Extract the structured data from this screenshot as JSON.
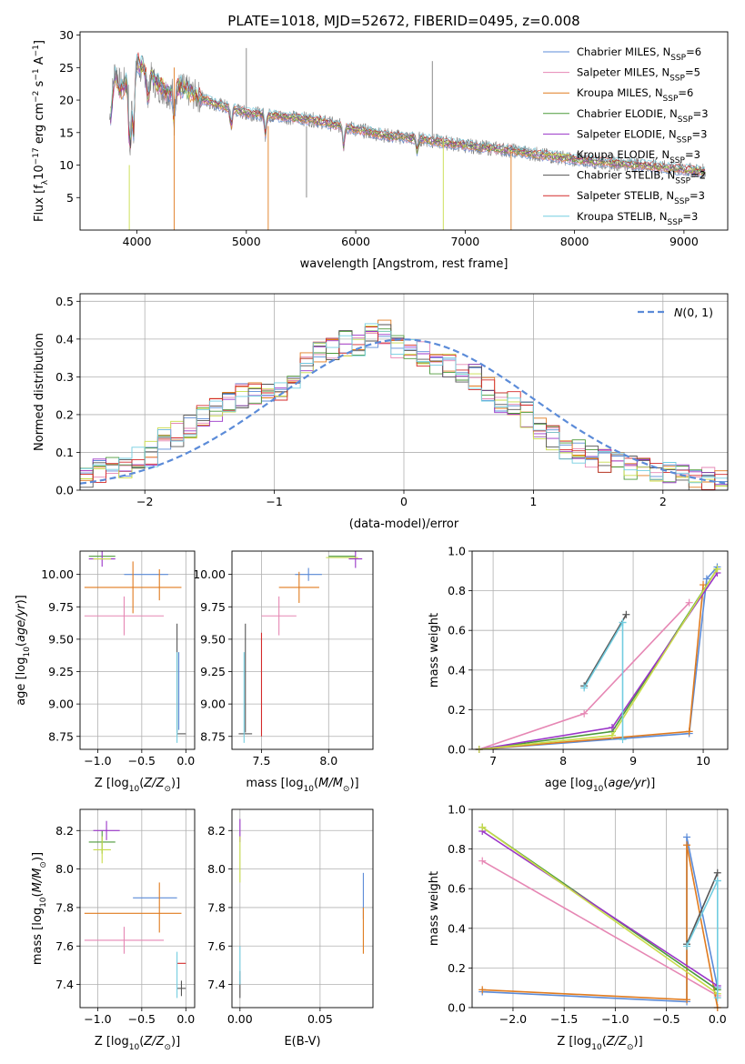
{
  "figure_title": "PLATE=1018, MJD=52672, FIBERID=0495, z=0.008",
  "colors": [
    "#5b8bd8",
    "#e687b4",
    "#e07b1f",
    "#4c9a3a",
    "#9a35c8",
    "#c8dc4a",
    "#555555",
    "#d42a2a",
    "#72cde0"
  ],
  "chart_data": [
    {
      "id": "spectrum",
      "type": "line",
      "title": "PLATE=1018, MJD=52672, FIBERID=0495, z=0.008",
      "xlabel": "wavelength [Angstrom, rest frame]",
      "ylabel": "Flux [f_λ 10^-17 erg cm^-2 s^-1 A^-1]",
      "xlim": [
        3480,
        9400
      ],
      "ylim": [
        0,
        30.5
      ],
      "xticks": [
        4000,
        5000,
        6000,
        7000,
        8000,
        9000
      ],
      "yticks": [
        5,
        10,
        15,
        20,
        25,
        30
      ],
      "grid": false,
      "legend_position": "top-right",
      "observed_spectrum": {
        "color": "#7f7f7f",
        "x": [
          3750,
          3800,
          3850,
          3900,
          3950,
          4000,
          4100,
          4200,
          4300,
          4400,
          4500,
          4700,
          5000,
          5300,
          5600,
          6000,
          6300,
          6600,
          7000,
          7400,
          7800,
          8200,
          8600,
          9000,
          9200
        ],
        "y": [
          17,
          25,
          22,
          23,
          19,
          25,
          24,
          22,
          21,
          22,
          21,
          19.5,
          18,
          17.5,
          17,
          15.5,
          14.5,
          14,
          13,
          12.3,
          11.3,
          10.5,
          10,
          9.3,
          9
        ]
      },
      "series": [
        {
          "name": "Chabrier MILES, N_SSP=6",
          "color": "#5b8bd8"
        },
        {
          "name": "Salpeter MILES, N_SSP=5",
          "color": "#e687b4"
        },
        {
          "name": "Kroupa MILES, N_SSP=6",
          "color": "#e07b1f"
        },
        {
          "name": "Chabrier ELODIE, N_SSP=3",
          "color": "#4c9a3a"
        },
        {
          "name": "Salpeter ELODIE, N_SSP=3",
          "color": "#9a35c8"
        },
        {
          "name": "Kroupa ELODIE, N_SSP=3",
          "color": "#c8dc4a"
        },
        {
          "name": "Chabrier STELIB, N_SSP=2",
          "color": "#555555"
        },
        {
          "name": "Salpeter STELIB, N_SSP=3",
          "color": "#d42a2a"
        },
        {
          "name": "Kroupa STELIB, N_SSP=3",
          "color": "#72cde0"
        }
      ],
      "legend_labels": [
        {
          "prefix": "Chabrier MILES, N",
          "sub": "SSP",
          "suffix": "=6"
        },
        {
          "prefix": "Salpeter MILES, N",
          "sub": "SSP",
          "suffix": "=5"
        },
        {
          "prefix": "Kroupa MILES, N",
          "sub": "SSP",
          "suffix": "=6"
        },
        {
          "prefix": "Chabrier ELODIE, N",
          "sub": "SSP",
          "suffix": "=3"
        },
        {
          "prefix": "Salpeter ELODIE, N",
          "sub": "SSP",
          "suffix": "=3"
        },
        {
          "prefix": "Kroupa ELODIE, N",
          "sub": "SSP",
          "suffix": "=3"
        },
        {
          "prefix": "Chabrier STELIB, N",
          "sub": "SSP",
          "suffix": "=2"
        },
        {
          "prefix": "Salpeter STELIB, N",
          "sub": "SSP",
          "suffix": "=3"
        },
        {
          "prefix": "Kroupa STELIB, N",
          "sub": "SSP",
          "suffix": "=3"
        }
      ],
      "model_curve": {
        "x": [
          3750,
          3800,
          3850,
          3900,
          3950,
          4000,
          4100,
          4200,
          4300,
          4400,
          4500,
          4700,
          5000,
          5300,
          5600,
          6000,
          6300,
          6600,
          7000,
          7400,
          7800,
          8200,
          8600,
          9000,
          9200
        ],
        "y": [
          16,
          24,
          21.5,
          22.5,
          18.5,
          26,
          24,
          22.5,
          21,
          22,
          21,
          19.5,
          18,
          17.5,
          17,
          15.5,
          14.5,
          14,
          13,
          12.3,
          11.3,
          10.5,
          10,
          9.3,
          9
        ]
      }
    },
    {
      "id": "residuals",
      "type": "line",
      "xlabel": "(data-model)/error",
      "ylabel": "Normed distribution",
      "xlim": [
        -2.5,
        2.5
      ],
      "ylim": [
        0,
        0.52
      ],
      "xticks": [
        -2,
        -1,
        0,
        1,
        2
      ],
      "yticks": [
        0.0,
        0.1,
        0.2,
        0.3,
        0.4,
        0.5
      ],
      "grid": true,
      "legend_position": "top-right",
      "reference_curve": {
        "name": "N(0,1)",
        "color": "#5b8bd8",
        "style": "dashed",
        "mean": 0,
        "sigma": 1
      },
      "histogram_bins": [
        -2.5,
        -2.4,
        -2.3,
        -2.2,
        -2.1,
        -2.0,
        -1.9,
        -1.8,
        -1.7,
        -1.6,
        -1.5,
        -1.4,
        -1.3,
        -1.2,
        -1.1,
        -1.0,
        -0.9,
        -0.8,
        -0.7,
        -0.6,
        -0.5,
        -0.4,
        -0.3,
        -0.2,
        -0.1,
        0.0,
        0.1,
        0.2,
        0.3,
        0.4,
        0.5,
        0.6,
        0.7,
        0.8,
        0.9,
        1.0,
        1.1,
        1.2,
        1.3,
        1.4,
        1.5,
        1.6,
        1.7,
        1.8,
        1.9,
        2.0,
        2.1,
        2.2,
        2.3,
        2.4
      ],
      "histogram_envelope": [
        0.035,
        0.05,
        0.065,
        0.065,
        0.08,
        0.095,
        0.13,
        0.15,
        0.17,
        0.2,
        0.21,
        0.23,
        0.25,
        0.26,
        0.25,
        0.27,
        0.3,
        0.33,
        0.37,
        0.38,
        0.39,
        0.38,
        0.41,
        0.42,
        0.38,
        0.37,
        0.36,
        0.34,
        0.33,
        0.32,
        0.3,
        0.27,
        0.24,
        0.23,
        0.2,
        0.17,
        0.14,
        0.11,
        0.1,
        0.09,
        0.08,
        0.07,
        0.06,
        0.05,
        0.05,
        0.04,
        0.035,
        0.03,
        0.03,
        0.025
      ]
    },
    {
      "id": "age-vs-Z",
      "type": "scatter",
      "xlabel": "Z [log10(Z/Z_sun)]",
      "ylabel": "age [log10(age/yr)]",
      "xlim": [
        -1.2,
        0.1
      ],
      "ylim": [
        8.65,
        10.18
      ],
      "xticks": [
        -1.0,
        -0.5,
        0.0
      ],
      "yticks": [
        8.75,
        9.0,
        9.25,
        9.5,
        9.75,
        10.0
      ],
      "grid": true,
      "points": [
        {
          "series": 0,
          "x": -0.45,
          "y": 10.0,
          "xerr": 0.25,
          "yerr": 0.0
        },
        {
          "series": 1,
          "x": -0.7,
          "y": 9.68,
          "xerr": 0.45,
          "yerr": 0.15
        },
        {
          "series": 2,
          "x": -0.6,
          "y": 9.9,
          "xerr": 0.55,
          "yerr": 0.2
        },
        {
          "series": 2,
          "x": -0.3,
          "y": 9.92,
          "xerr": 0.0,
          "yerr": 0.12
        },
        {
          "series": 3,
          "x": -0.95,
          "y": 10.14,
          "xerr": 0.15,
          "yerr": 0.0
        },
        {
          "series": 4,
          "x": -0.95,
          "y": 10.12,
          "xerr": 0.15,
          "yerr": 0.06
        },
        {
          "series": 5,
          "x": -0.95,
          "y": 10.12,
          "xerr": 0.1,
          "yerr": 0.0
        },
        {
          "series": 6,
          "x": -0.05,
          "y": 8.77,
          "xerr": 0.05,
          "yerr": 0.0
        },
        {
          "series": 6,
          "x": -0.1,
          "y": 9.2,
          "xerr": 0.0,
          "yerr": 0.42
        },
        {
          "series": 8,
          "x": -0.1,
          "y": 9.05,
          "xerr": 0.0,
          "yerr": 0.35
        },
        {
          "series": 0,
          "x": -0.08,
          "y": 9.1,
          "xerr": 0.0,
          "yerr": 0.3
        }
      ]
    },
    {
      "id": "age-vs-mass",
      "type": "scatter",
      "xlabel": "mass [log10(M/M_sun)]",
      "ylabel": "",
      "xlim": [
        7.28,
        8.33
      ],
      "ylim": [
        8.65,
        10.18
      ],
      "xticks": [
        7.5,
        8.0
      ],
      "yticks": [
        8.75,
        9.0,
        9.25,
        9.5,
        9.75,
        10.0
      ],
      "grid": true,
      "points": [
        {
          "series": 0,
          "x": 7.85,
          "y": 10.0,
          "xerr": 0.1,
          "yerr": 0.05
        },
        {
          "series": 1,
          "x": 7.63,
          "y": 9.68,
          "xerr": 0.13,
          "yerr": 0.15
        },
        {
          "series": 2,
          "x": 7.78,
          "y": 9.9,
          "xerr": 0.15,
          "yerr": 0.12
        },
        {
          "series": 3,
          "x": 8.1,
          "y": 10.14,
          "xerr": 0.1,
          "yerr": 0.0
        },
        {
          "series": 4,
          "x": 8.2,
          "y": 10.12,
          "xerr": 0.05,
          "yerr": 0.07
        },
        {
          "series": 5,
          "x": 8.1,
          "y": 10.13,
          "xerr": 0.12,
          "yerr": 0.0
        },
        {
          "series": 6,
          "x": 7.38,
          "y": 8.77,
          "xerr": 0.05,
          "yerr": 0.0
        },
        {
          "series": 6,
          "x": 7.38,
          "y": 9.2,
          "xerr": 0.0,
          "yerr": 0.42
        },
        {
          "series": 7,
          "x": 7.5,
          "y": 9.15,
          "xerr": 0.0,
          "yerr": 0.4
        },
        {
          "series": 8,
          "x": 7.37,
          "y": 9.05,
          "xerr": 0.0,
          "yerr": 0.35
        }
      ]
    },
    {
      "id": "massweight-vs-age",
      "type": "line",
      "xlabel": "age [log10(age/yr)]",
      "ylabel": "mass weight",
      "xlim": [
        6.7,
        10.35
      ],
      "ylim": [
        0,
        1.0
      ],
      "xticks": [
        7,
        8,
        9,
        10
      ],
      "yticks": [
        0.0,
        0.2,
        0.4,
        0.6,
        0.8,
        1.0
      ],
      "grid": true,
      "series": [
        {
          "series": 0,
          "x": [
            6.8,
            9.8,
            10.05,
            10.2
          ],
          "y": [
            0.0,
            0.08,
            0.86,
            0.92
          ]
        },
        {
          "series": 1,
          "x": [
            6.8,
            8.3,
            9.8
          ],
          "y": [
            0.0,
            0.18,
            0.74
          ]
        },
        {
          "series": 2,
          "x": [
            6.8,
            9.8,
            10.0
          ],
          "y": [
            0.0,
            0.09,
            0.83
          ]
        },
        {
          "series": 3,
          "x": [
            6.8,
            8.7,
            10.2
          ],
          "y": [
            0.0,
            0.09,
            0.91
          ]
        },
        {
          "series": 4,
          "x": [
            6.8,
            8.7,
            10.2
          ],
          "y": [
            0.0,
            0.11,
            0.89
          ]
        },
        {
          "series": 5,
          "x": [
            6.8,
            8.7,
            10.2
          ],
          "y": [
            0.0,
            0.07,
            0.91
          ]
        },
        {
          "series": 6,
          "x": [
            8.3,
            8.9
          ],
          "y": [
            0.32,
            0.68
          ]
        },
        {
          "series": 8,
          "x": [
            8.3,
            8.85
          ],
          "y": [
            0.31,
            0.64
          ]
        },
        {
          "series": 8,
          "x": [
            8.85,
            8.85
          ],
          "y": [
            0.05,
            0.64
          ]
        }
      ]
    },
    {
      "id": "mass-vs-Z",
      "type": "scatter",
      "xlabel": "Z [log10(Z/Z_sun)]",
      "ylabel": "mass [log10(M/M_sun)]",
      "xlim": [
        -1.2,
        0.1
      ],
      "ylim": [
        7.28,
        8.31
      ],
      "xticks": [
        -1.0,
        -0.5,
        0.0
      ],
      "yticks": [
        7.4,
        7.6,
        7.8,
        8.0,
        8.2
      ],
      "grid": true,
      "points": [
        {
          "series": 0,
          "x": -0.35,
          "y": 7.85,
          "xerr": 0.25,
          "yerr": 0.0
        },
        {
          "series": 1,
          "x": -0.7,
          "y": 7.63,
          "xerr": 0.45,
          "yerr": 0.07
        },
        {
          "series": 2,
          "x": -0.6,
          "y": 7.77,
          "xerr": 0.55,
          "yerr": 0.0
        },
        {
          "series": 2,
          "x": -0.3,
          "y": 7.8,
          "xerr": 0.0,
          "yerr": 0.13
        },
        {
          "series": 3,
          "x": -0.95,
          "y": 8.14,
          "xerr": 0.15,
          "yerr": 0.06
        },
        {
          "series": 4,
          "x": -0.9,
          "y": 8.2,
          "xerr": 0.15,
          "yerr": 0.05
        },
        {
          "series": 5,
          "x": -0.95,
          "y": 8.1,
          "xerr": 0.1,
          "yerr": 0.07
        },
        {
          "series": 6,
          "x": -0.05,
          "y": 7.38,
          "xerr": 0.05,
          "yerr": 0.04
        },
        {
          "series": 7,
          "x": -0.05,
          "y": 7.51,
          "xerr": 0.05,
          "yerr": 0.0
        },
        {
          "series": 8,
          "x": -0.1,
          "y": 7.45,
          "xerr": 0.0,
          "yerr": 0.12
        }
      ]
    },
    {
      "id": "mass-vs-EBV",
      "type": "scatter",
      "xlabel": "E(B-V)",
      "ylabel": "",
      "xlim": [
        -0.005,
        0.083
      ],
      "ylim": [
        7.28,
        8.31
      ],
      "xticks": [
        0.0,
        0.05
      ],
      "yticks": [
        7.4,
        7.6,
        7.8,
        8.0,
        8.2
      ],
      "grid": true,
      "points": [
        {
          "series": 4,
          "x": 0.0,
          "y": 8.2,
          "xerr": 0.0,
          "yerr": 0.06
        },
        {
          "series": 5,
          "x": 0.0,
          "y": 8.05,
          "xerr": 0.0,
          "yerr": 0.12
        },
        {
          "series": 6,
          "x": 0.0,
          "y": 7.4,
          "xerr": 0.0,
          "yerr": 0.07
        },
        {
          "series": 8,
          "x": 0.0,
          "y": 7.5,
          "xerr": 0.0,
          "yerr": 0.1
        },
        {
          "series": 0,
          "x": 0.077,
          "y": 7.86,
          "xerr": 0.0,
          "yerr": 0.12
        },
        {
          "series": 2,
          "x": 0.077,
          "y": 7.68,
          "xerr": 0.0,
          "yerr": 0.12
        }
      ]
    },
    {
      "id": "massweight-vs-Z",
      "type": "line",
      "xlabel": "Z [log10(Z/Z_sun)]",
      "ylabel": "mass weight",
      "xlim": [
        -2.4,
        0.1
      ],
      "ylim": [
        0,
        1.0
      ],
      "xticks": [
        -2.0,
        -1.5,
        -1.0,
        -0.5,
        0.0
      ],
      "yticks": [
        0.0,
        0.2,
        0.4,
        0.6,
        0.8,
        1.0
      ],
      "grid": true,
      "series": [
        {
          "series": 0,
          "x": [
            -2.3,
            -0.3,
            -0.3,
            0.0
          ],
          "y": [
            0.08,
            0.03,
            0.86,
            0.1
          ]
        },
        {
          "series": 1,
          "x": [
            -2.3,
            0.0
          ],
          "y": [
            0.74,
            0.06
          ]
        },
        {
          "series": 2,
          "x": [
            -2.3,
            -0.3,
            -0.3,
            0.0
          ],
          "y": [
            0.09,
            0.04,
            0.82,
            0.0
          ]
        },
        {
          "series": 3,
          "x": [
            -2.3,
            0.0
          ],
          "y": [
            0.91,
            0.09
          ]
        },
        {
          "series": 4,
          "x": [
            -2.3,
            0.0
          ],
          "y": [
            0.89,
            0.11
          ]
        },
        {
          "series": 5,
          "x": [
            -2.3,
            0.0
          ],
          "y": [
            0.91,
            0.07
          ]
        },
        {
          "series": 6,
          "x": [
            -0.3,
            0.0
          ],
          "y": [
            0.32,
            0.68
          ]
        },
        {
          "series": 8,
          "x": [
            -0.3,
            0.0
          ],
          "y": [
            0.31,
            0.64
          ]
        },
        {
          "series": 8,
          "x": [
            0.0,
            0.0
          ],
          "y": [
            0.05,
            0.64
          ]
        }
      ]
    }
  ]
}
